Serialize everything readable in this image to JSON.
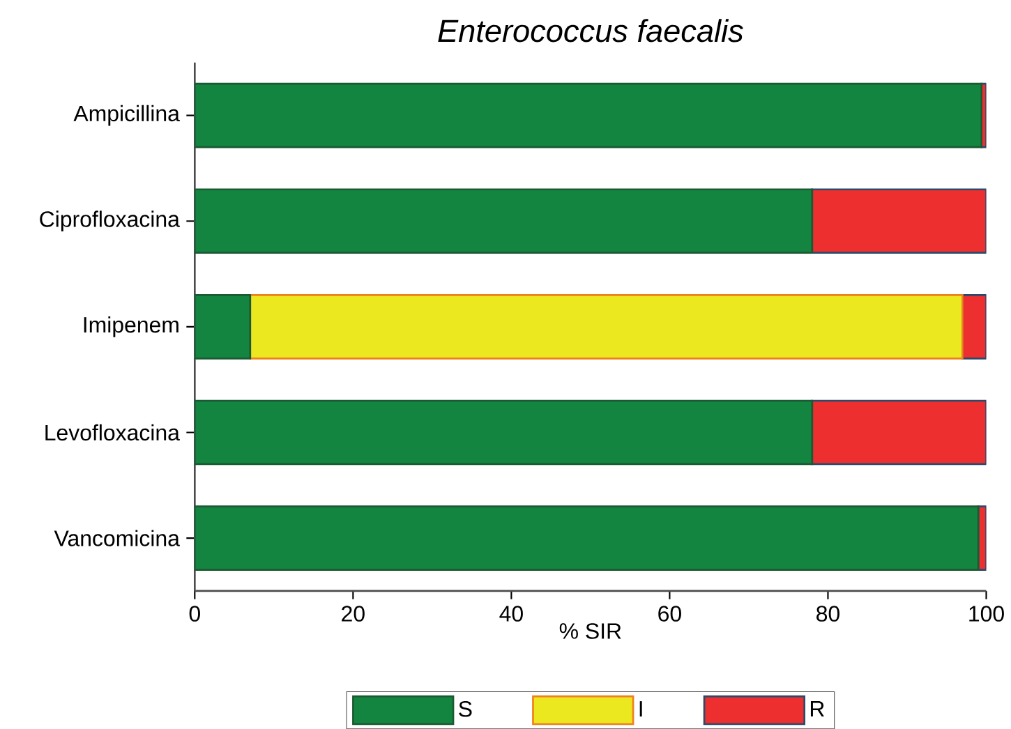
{
  "chart_data": {
    "type": "bar",
    "orientation": "horizontal",
    "stacked": true,
    "title": "Enterococcus faecalis",
    "xlabel": "% SIR",
    "categories": [
      "Ampicillina",
      "Ciprofloxacina",
      "Imipenem",
      "Levofloxacina",
      "Vancomicina"
    ],
    "series": [
      {
        "name": "S",
        "color": "#138540",
        "values": [
          99.4,
          78,
          7,
          78,
          99
        ]
      },
      {
        "name": "I",
        "color": "#ebe81f",
        "values": [
          0,
          0,
          90,
          0,
          0
        ]
      },
      {
        "name": "R",
        "color": "#ee2f2f",
        "values": [
          0.6,
          22,
          3,
          22,
          1
        ]
      }
    ],
    "xlim": [
      0,
      100
    ],
    "xticks": [
      0,
      20,
      40,
      60,
      80,
      100
    ],
    "legend": "bottom",
    "grid": false
  }
}
